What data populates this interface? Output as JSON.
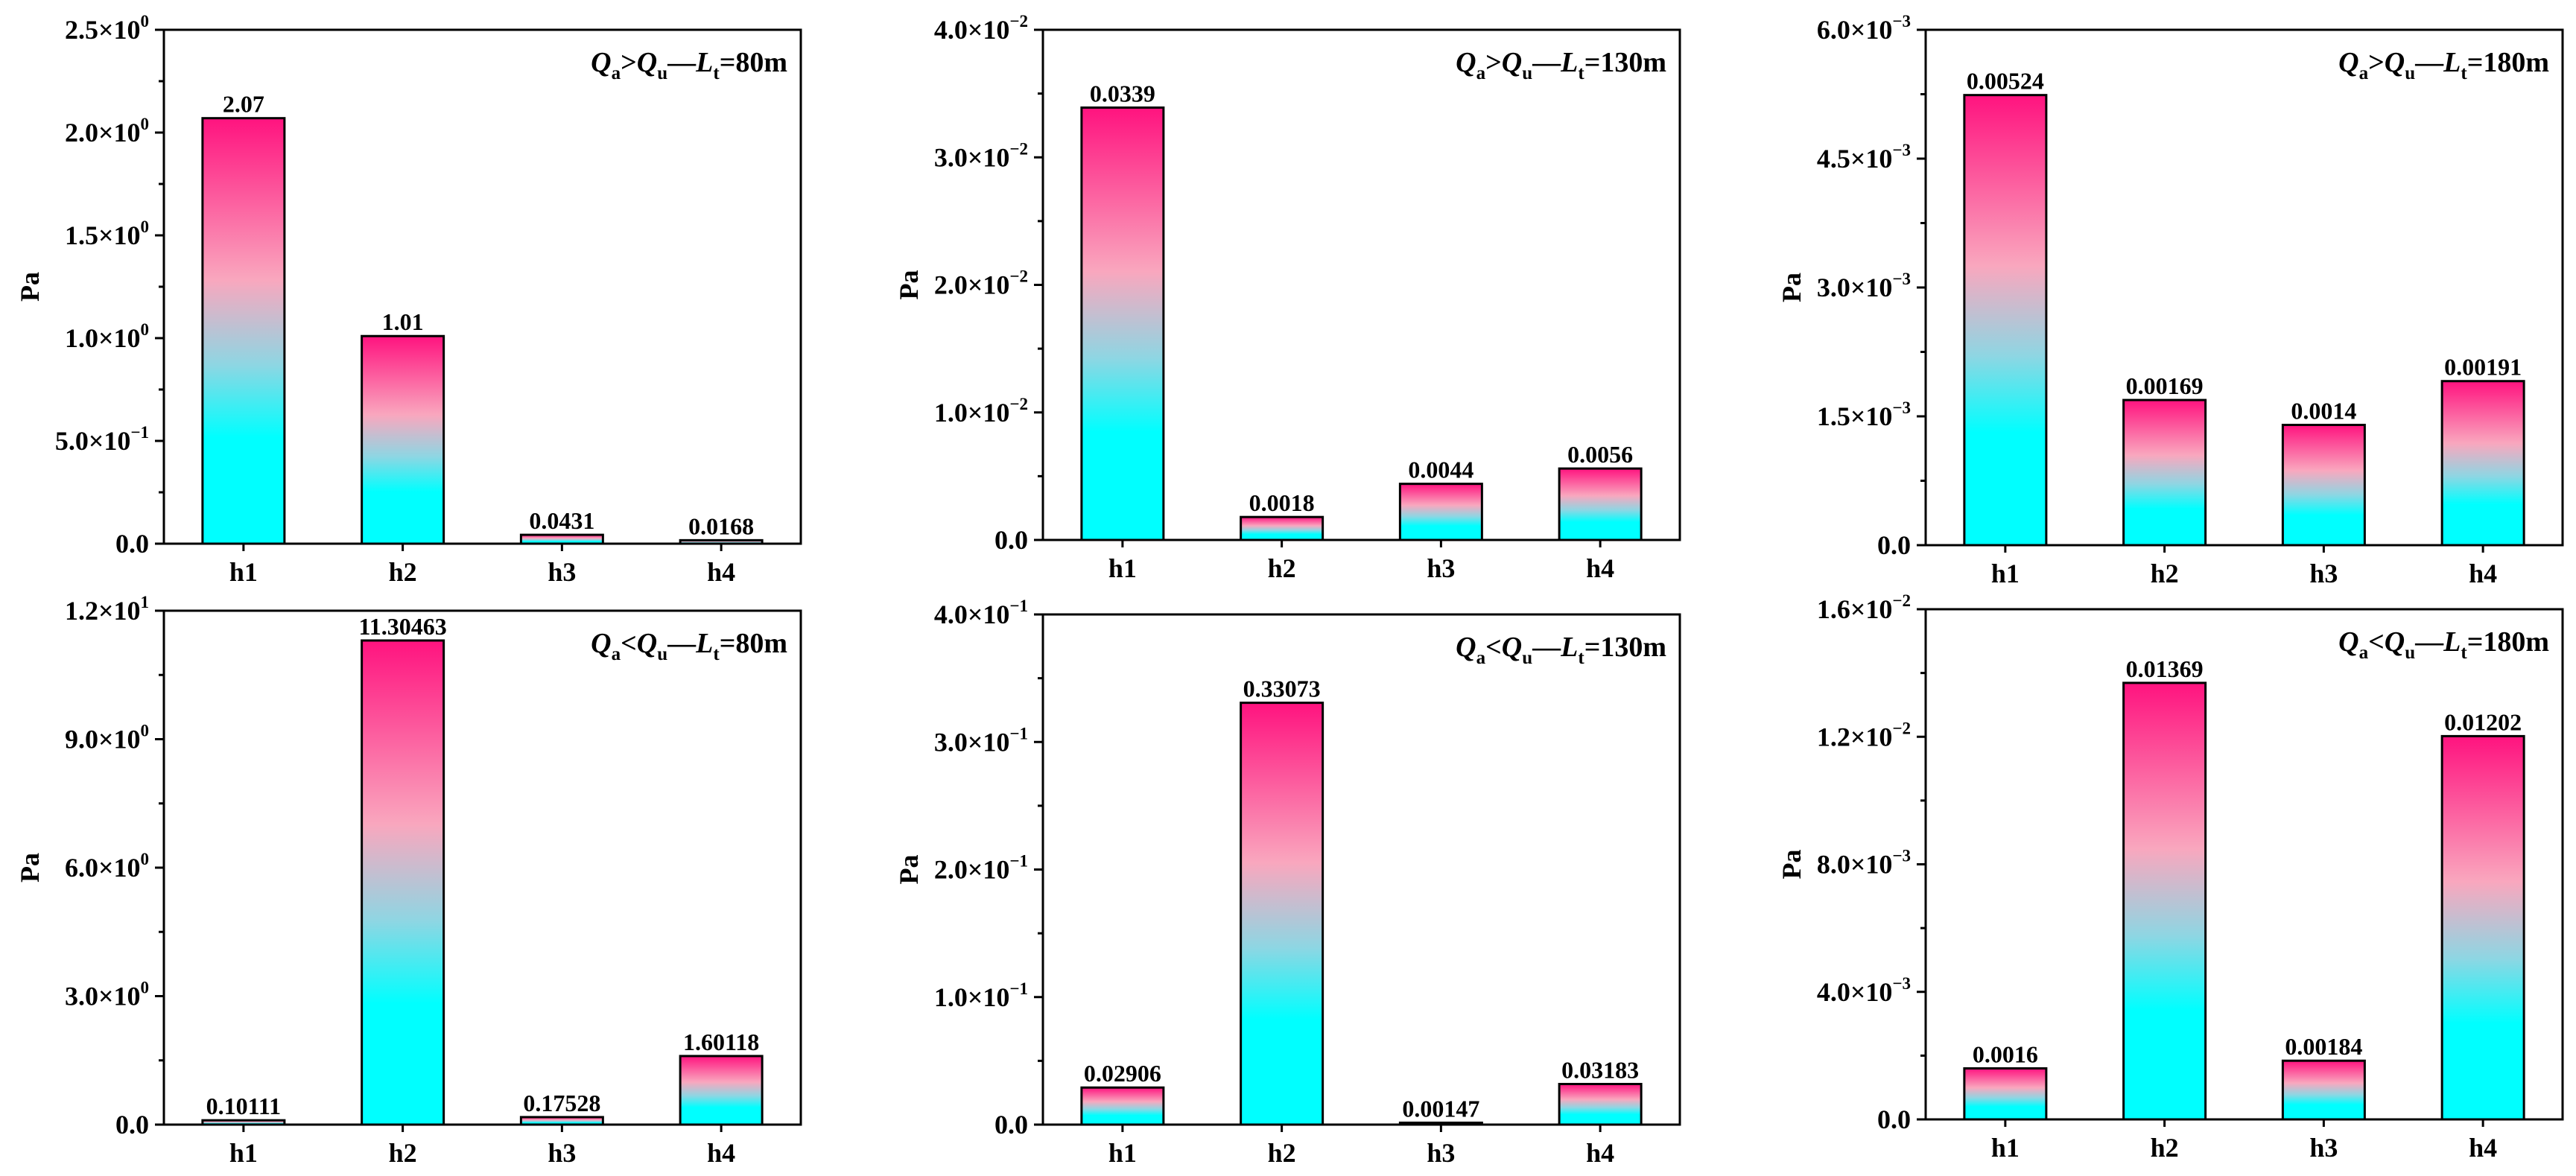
{
  "colors": {
    "bar_bottom": "#00FFFF",
    "bar_mid": "#F9A7BE",
    "bar_top": "#FF137F"
  },
  "chart_data": [
    {
      "type": "bar",
      "title": {
        "q1": "Q",
        "q1_sub": "a",
        "rel": ">",
        "q2": "Q",
        "q2_sub": "u",
        "dash": "—",
        "l": "L",
        "l_sub": "t",
        "rest": "=80m"
      },
      "ylabel": "Pa",
      "categories": [
        "h1",
        "h2",
        "h3",
        "h4"
      ],
      "values": [
        2.07,
        1.01,
        0.0431,
        0.0168
      ],
      "value_labels": [
        "2.07",
        "1.01",
        "0.0431",
        "0.0168"
      ],
      "ylim": [
        0,
        2.5
      ],
      "yticks": [
        {
          "v": 0,
          "m": "0.0",
          "e": ""
        },
        {
          "v": 0.5,
          "m": "5.0×10",
          "e": "−1"
        },
        {
          "v": 1.0,
          "m": "1.0×10",
          "e": "0"
        },
        {
          "v": 1.5,
          "m": "1.5×10",
          "e": "0"
        },
        {
          "v": 2.0,
          "m": "2.0×10",
          "e": "0"
        },
        {
          "v": 2.5,
          "m": "2.5×10",
          "e": "0"
        }
      ]
    },
    {
      "type": "bar",
      "title": {
        "q1": "Q",
        "q1_sub": "a",
        "rel": ">",
        "q2": "Q",
        "q2_sub": "u",
        "dash": "—",
        "l": "L",
        "l_sub": "t",
        "rest": "=130m"
      },
      "ylabel": "Pa",
      "categories": [
        "h1",
        "h2",
        "h3",
        "h4"
      ],
      "values": [
        0.0339,
        0.0018,
        0.0044,
        0.0056
      ],
      "value_labels": [
        "0.0339",
        "0.0018",
        "0.0044",
        "0.0056"
      ],
      "ylim": [
        0,
        0.04
      ],
      "yticks": [
        {
          "v": 0,
          "m": "0.0",
          "e": ""
        },
        {
          "v": 0.01,
          "m": "1.0×10",
          "e": "−2"
        },
        {
          "v": 0.02,
          "m": "2.0×10",
          "e": "−2"
        },
        {
          "v": 0.03,
          "m": "3.0×10",
          "e": "−2"
        },
        {
          "v": 0.04,
          "m": "4.0×10",
          "e": "−2"
        }
      ]
    },
    {
      "type": "bar",
      "title": {
        "q1": "Q",
        "q1_sub": "a",
        "rel": ">",
        "q2": "Q",
        "q2_sub": "u",
        "dash": "—",
        "l": "L",
        "l_sub": "t",
        "rest": "=180m"
      },
      "ylabel": "Pa",
      "categories": [
        "h1",
        "h2",
        "h3",
        "h4"
      ],
      "values": [
        0.00524,
        0.00169,
        0.0014,
        0.00191
      ],
      "value_labels": [
        "0.00524",
        "0.00169",
        "0.0014",
        "0.00191"
      ],
      "ylim": [
        0,
        0.006
      ],
      "yticks": [
        {
          "v": 0,
          "m": "0.0",
          "e": ""
        },
        {
          "v": 0.0015,
          "m": "1.5×10",
          "e": "−3"
        },
        {
          "v": 0.003,
          "m": "3.0×10",
          "e": "−3"
        },
        {
          "v": 0.0045,
          "m": "4.5×10",
          "e": "−3"
        },
        {
          "v": 0.006,
          "m": "6.0×10",
          "e": "−3"
        }
      ]
    },
    {
      "type": "bar",
      "title": {
        "q1": "Q",
        "q1_sub": "a",
        "rel": "<",
        "q2": "Q",
        "q2_sub": "u",
        "dash": "—",
        "l": "L",
        "l_sub": "t",
        "rest": "=80m"
      },
      "ylabel": "Pa",
      "categories": [
        "h1",
        "h2",
        "h3",
        "h4"
      ],
      "values": [
        0.10111,
        11.30463,
        0.17528,
        1.60118
      ],
      "value_labels": [
        "0.10111",
        "11.30463",
        "0.17528",
        "1.60118"
      ],
      "ylim": [
        0,
        12
      ],
      "yticks": [
        {
          "v": 0,
          "m": "0.0",
          "e": ""
        },
        {
          "v": 3,
          "m": "3.0×10",
          "e": "0"
        },
        {
          "v": 6,
          "m": "6.0×10",
          "e": "0"
        },
        {
          "v": 9,
          "m": "9.0×10",
          "e": "0"
        },
        {
          "v": 12,
          "m": "1.2×10",
          "e": "1"
        }
      ]
    },
    {
      "type": "bar",
      "title": {
        "q1": "Q",
        "q1_sub": "a",
        "rel": "<",
        "q2": "Q",
        "q2_sub": "u",
        "dash": "—",
        "l": "L",
        "l_sub": "t",
        "rest": "=130m"
      },
      "ylabel": "Pa",
      "categories": [
        "h1",
        "h2",
        "h3",
        "h4"
      ],
      "values": [
        0.02906,
        0.33073,
        0.00147,
        0.03183
      ],
      "value_labels": [
        "0.02906",
        "0.33073",
        "0.00147",
        "0.03183"
      ],
      "ylim": [
        0,
        0.4
      ],
      "yticks": [
        {
          "v": 0,
          "m": "0.0",
          "e": ""
        },
        {
          "v": 0.1,
          "m": "1.0×10",
          "e": "−1"
        },
        {
          "v": 0.2,
          "m": "2.0×10",
          "e": "−1"
        },
        {
          "v": 0.3,
          "m": "3.0×10",
          "e": "−1"
        },
        {
          "v": 0.4,
          "m": "4.0×10",
          "e": "−1"
        }
      ]
    },
    {
      "type": "bar",
      "title": {
        "q1": "Q",
        "q1_sub": "a",
        "rel": "<",
        "q2": "Q",
        "q2_sub": "u",
        "dash": "—",
        "l": "L",
        "l_sub": "t",
        "rest": "=180m"
      },
      "ylabel": "Pa",
      "categories": [
        "h1",
        "h2",
        "h3",
        "h4"
      ],
      "values": [
        0.0016,
        0.01369,
        0.00184,
        0.01202
      ],
      "value_labels": [
        "0.0016",
        "0.01369",
        "0.00184",
        "0.01202"
      ],
      "ylim": [
        0,
        0.016
      ],
      "yticks": [
        {
          "v": 0,
          "m": "0.0",
          "e": ""
        },
        {
          "v": 0.004,
          "m": "4.0×10",
          "e": "−3"
        },
        {
          "v": 0.008,
          "m": "8.0×10",
          "e": "−3"
        },
        {
          "v": 0.012,
          "m": "1.2×10",
          "e": "−2"
        },
        {
          "v": 0.016,
          "m": "1.6×10",
          "e": "−2"
        }
      ]
    }
  ]
}
